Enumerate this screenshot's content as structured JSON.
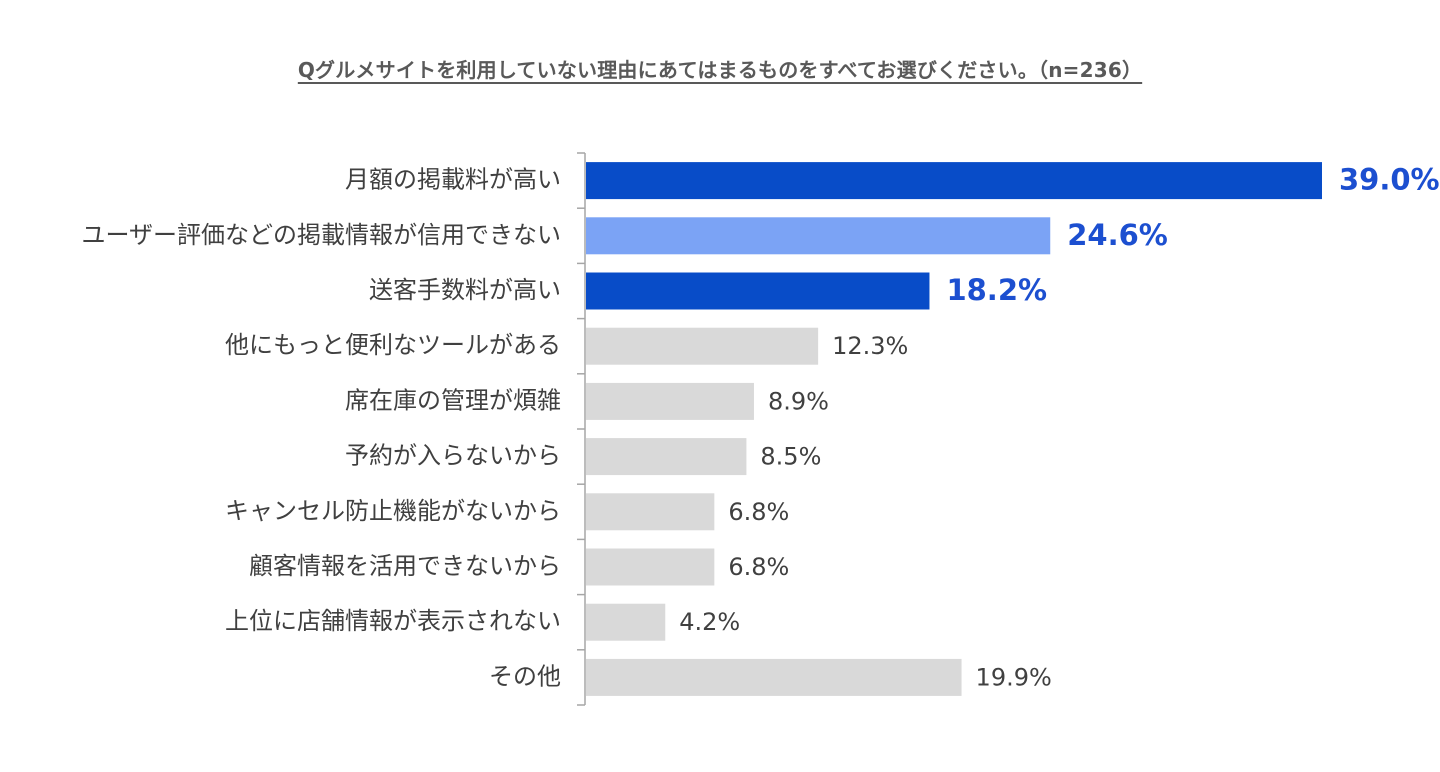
{
  "colors": {
    "primary_bar": "#084cc8",
    "secondary_bar": "#7ba3f5",
    "other_bar": "#d9d9d9",
    "highlight_text": "#1c4fd0",
    "axis": "#a6a6a6"
  },
  "chart_data": {
    "type": "bar",
    "orientation": "horizontal",
    "title": "Qグルメサイトを利用していない理由にあてはまるものをすべてお選びください。（n=236）",
    "categories": [
      "月額の掲載料が高い",
      "ユーザー評価などの掲載情報が信用できない",
      "送客手数料が高い",
      "他にもっと便利なツールがある",
      "席在庫の管理が煩雑",
      "予約が入らないから",
      "キャンセル防止機能がないから",
      "顧客情報を活用できないから",
      "上位に店舗情報が表示されない",
      "その他"
    ],
    "values": [
      39.0,
      24.6,
      18.2,
      12.3,
      8.9,
      8.5,
      6.8,
      6.8,
      4.2,
      19.9
    ],
    "value_labels": [
      "39.0%",
      "24.6%",
      "18.2%",
      "12.3%",
      "8.9%",
      "8.5%",
      "6.8%",
      "6.8%",
      "4.2%",
      "19.9%"
    ],
    "bar_colors": [
      "#084cc8",
      "#7ba3f5",
      "#084cc8",
      "#d9d9d9",
      "#d9d9d9",
      "#d9d9d9",
      "#d9d9d9",
      "#d9d9d9",
      "#d9d9d9",
      "#d9d9d9"
    ],
    "highlighted": [
      true,
      true,
      true,
      false,
      false,
      false,
      false,
      false,
      false,
      false
    ],
    "xlim": [
      0,
      39.0
    ],
    "grid": false,
    "legend": "none"
  }
}
